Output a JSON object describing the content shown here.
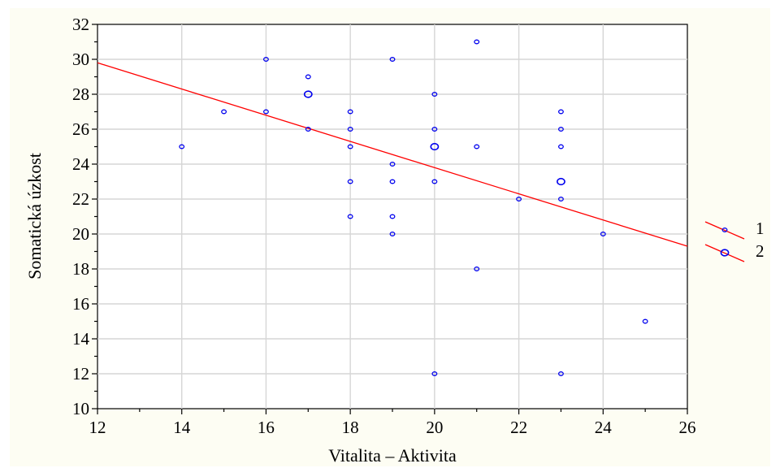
{
  "chart_data": {
    "type": "scatter",
    "xlabel": "Vitalita – Aktivita",
    "ylabel": "Somatická úzkost",
    "xlim": [
      12,
      26
    ],
    "ylim": [
      10,
      32
    ],
    "xticks": [
      12,
      14,
      16,
      18,
      20,
      22,
      24,
      26
    ],
    "yticks": [
      10,
      12,
      14,
      16,
      18,
      20,
      22,
      24,
      26,
      28,
      30,
      32
    ],
    "grid": true,
    "legend_placement": "right",
    "colors": {
      "points": "#0000ee",
      "regression": "#ff0000",
      "grid": "#d6d6d6"
    },
    "regression_line": {
      "x": [
        12,
        26
      ],
      "y": [
        29.8,
        19.3
      ]
    },
    "series": [
      {
        "name": "1",
        "marker": "small-circle",
        "points": [
          [
            14,
            25
          ],
          [
            15,
            27
          ],
          [
            16,
            30
          ],
          [
            16,
            27
          ],
          [
            17,
            29
          ],
          [
            17,
            26
          ],
          [
            18,
            27
          ],
          [
            18,
            26
          ],
          [
            18,
            25
          ],
          [
            18,
            23
          ],
          [
            18,
            21
          ],
          [
            19,
            30
          ],
          [
            19,
            24
          ],
          [
            19,
            23
          ],
          [
            19,
            21
          ],
          [
            19,
            20
          ],
          [
            20,
            28
          ],
          [
            20,
            26
          ],
          [
            20,
            23
          ],
          [
            20,
            12
          ],
          [
            21,
            31
          ],
          [
            21,
            25
          ],
          [
            21,
            18
          ],
          [
            22,
            22
          ],
          [
            23,
            27
          ],
          [
            23,
            26
          ],
          [
            23,
            25
          ],
          [
            23,
            22
          ],
          [
            23,
            12
          ],
          [
            24,
            20
          ],
          [
            25,
            15
          ]
        ]
      },
      {
        "name": "2",
        "marker": "large-circle",
        "points": [
          [
            17,
            28
          ],
          [
            20,
            25
          ],
          [
            23,
            23
          ]
        ]
      }
    ]
  }
}
